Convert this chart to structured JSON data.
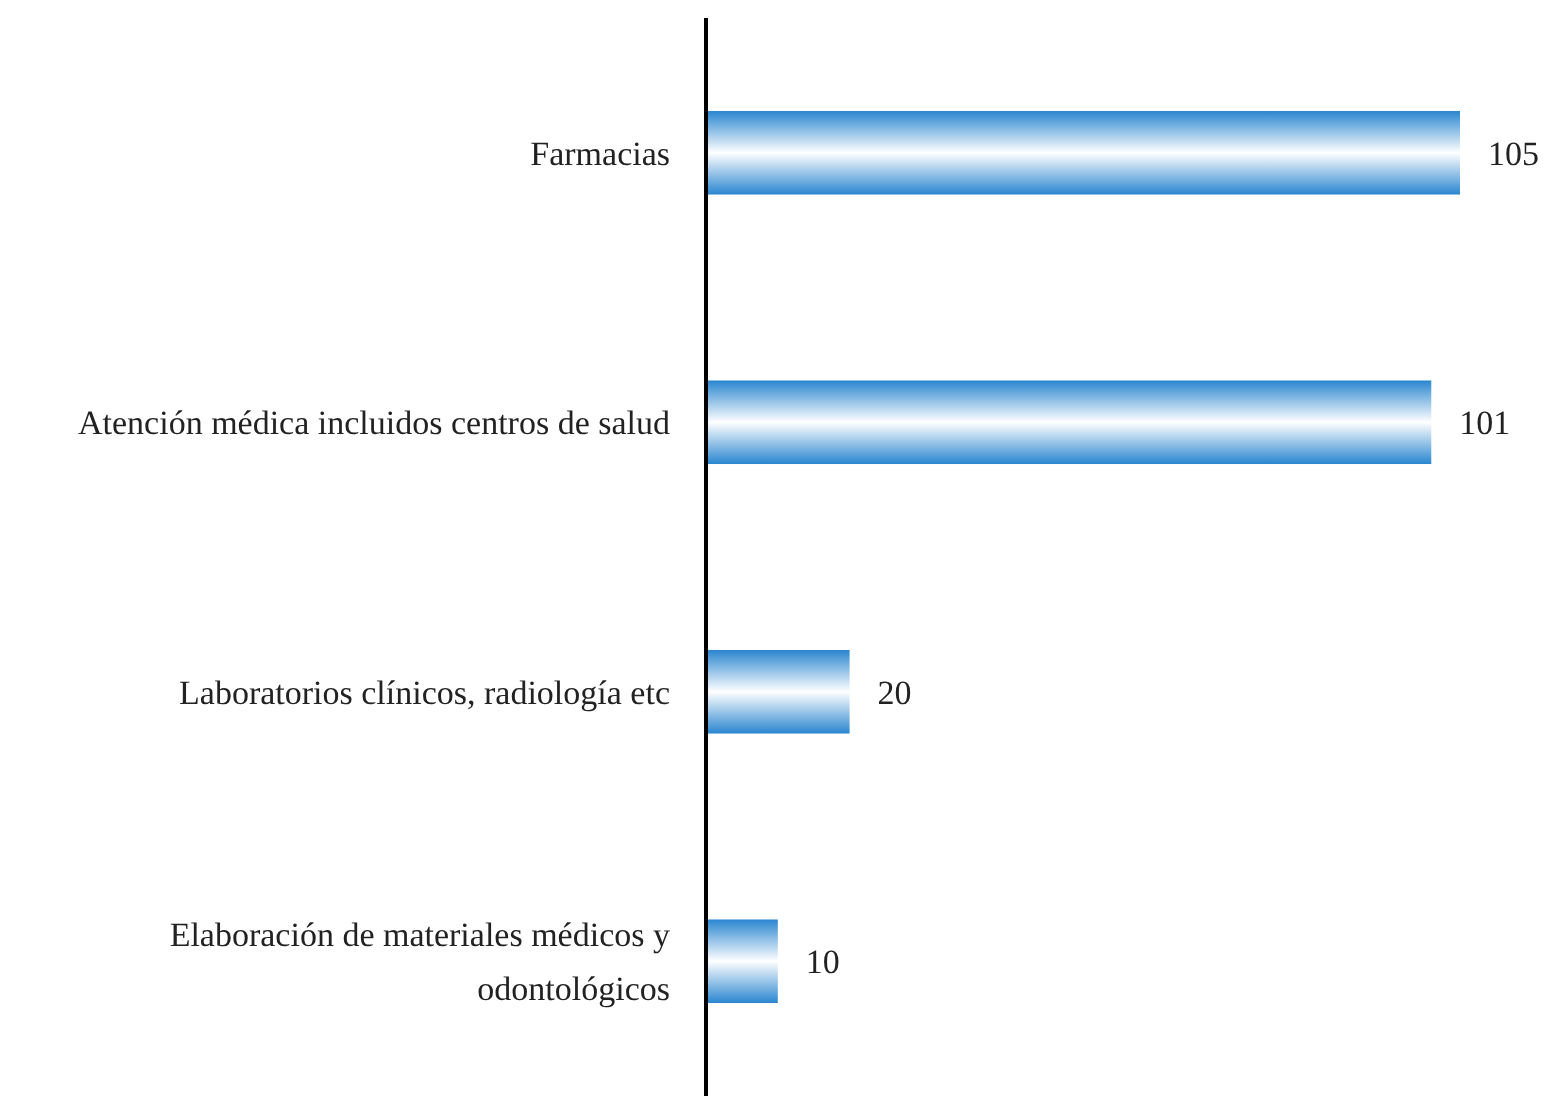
{
  "chart_data": {
    "type": "bar",
    "orientation": "horizontal",
    "categories": [
      "Farmacias",
      "Atención médica incluidos centros de salud",
      "Laboratorios clínicos, radiología etc",
      "Elaboración de materiales médicos y odontológicos"
    ],
    "values": [
      105,
      101,
      20,
      10
    ],
    "color": "#2a86d0",
    "data_labels": true
  }
}
